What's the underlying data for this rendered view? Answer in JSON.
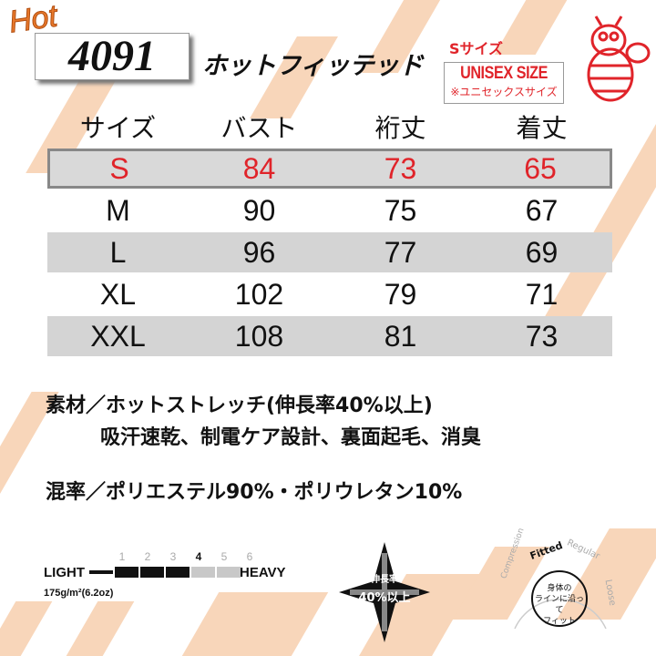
{
  "header": {
    "hot": "Hot",
    "model": "4091",
    "product_name": "ホットフィッテッド",
    "size_label": "Sサイズ",
    "unisex": "UNISEX SIZE",
    "unisex_jp": "※ユニセックスサイズ"
  },
  "size_table": {
    "columns": [
      "サイズ",
      "バスト",
      "裄丈",
      "着丈"
    ],
    "rows": [
      [
        "S",
        "84",
        "73",
        "65"
      ],
      [
        "M",
        "90",
        "75",
        "67"
      ],
      [
        "L",
        "96",
        "77",
        "69"
      ],
      [
        "XL",
        "102",
        "79",
        "71"
      ],
      [
        "XXL",
        "108",
        "81",
        "73"
      ]
    ],
    "selected": "S"
  },
  "specs": {
    "material": "素材／ホットストレッチ(伸長率40%以上)",
    "features": "吸汗速乾、制電ケア設計、裏面起毛、消臭",
    "blend": "混率／ポリエステル90%・ポリウレタン10%"
  },
  "weight": {
    "light": "LIGHT",
    "heavy": "HEAVY",
    "scale": [
      "1",
      "2",
      "3",
      "4",
      "5",
      "6"
    ],
    "level": 4,
    "value": "175g/m²(6.2oz)"
  },
  "stretch": {
    "label": "伸長率",
    "value": "40%以上"
  },
  "fit": {
    "options": [
      "Compression",
      "Fitted",
      "Regular",
      "Loose"
    ],
    "selected": "Fitted",
    "desc": [
      "身体の",
      "ラインに沿って",
      "フィット"
    ]
  },
  "colors": {
    "accent": "#e0242a",
    "watermark": "#f7cfae"
  }
}
